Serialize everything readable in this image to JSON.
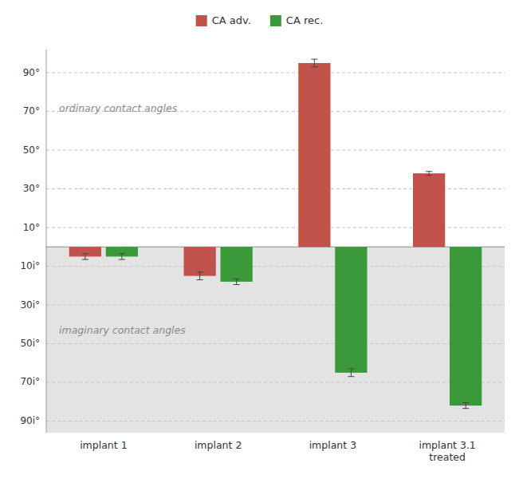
{
  "chart_data": {
    "type": "bar",
    "categories": [
      "implant 1",
      "implant 2",
      "implant 3",
      "implant 3.1\ntreated"
    ],
    "series": [
      {
        "name": "CA adv.",
        "color": "#c0524a",
        "values": [
          -5,
          -15,
          95,
          38
        ],
        "errors": [
          1.5,
          2.0,
          2.0,
          1.0
        ]
      },
      {
        "name": "CA rec.",
        "color": "#3a9a3a",
        "values": [
          -5,
          -18,
          -65,
          -82
        ],
        "errors": [
          1.5,
          1.5,
          2.0,
          1.5
        ]
      }
    ],
    "ylim": [
      -96,
      102
    ],
    "yticks": [
      {
        "value": 90,
        "label": "90°"
      },
      {
        "value": 70,
        "label": "70°"
      },
      {
        "value": 50,
        "label": "50°"
      },
      {
        "value": 30,
        "label": "30°"
      },
      {
        "value": 10,
        "label": "10°"
      },
      {
        "value": -10,
        "label": "10i°"
      },
      {
        "value": -30,
        "label": "30i°"
      },
      {
        "value": -50,
        "label": "50i°"
      },
      {
        "value": -70,
        "label": "70i°"
      },
      {
        "value": -90,
        "label": "90i°"
      }
    ],
    "grid": true,
    "legend": "top",
    "annotations": [
      "ordinary contact angles",
      "imaginary contact angles"
    ]
  }
}
